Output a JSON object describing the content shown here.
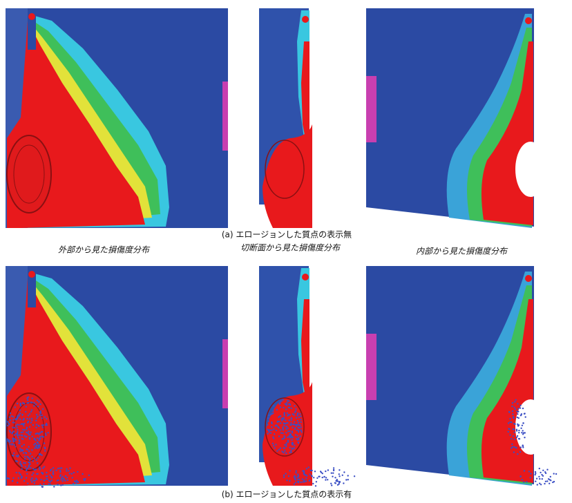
{
  "captions": {
    "a": "(a) エロージョンした質点の表示無",
    "b": "(b) エロージョンした質点の表示有"
  },
  "panels": [
    {
      "label": "外部から見た損傷度分布"
    },
    {
      "label": "切断面から見た損傷度分布"
    },
    {
      "label": "内部から見た損傷度分布"
    }
  ]
}
